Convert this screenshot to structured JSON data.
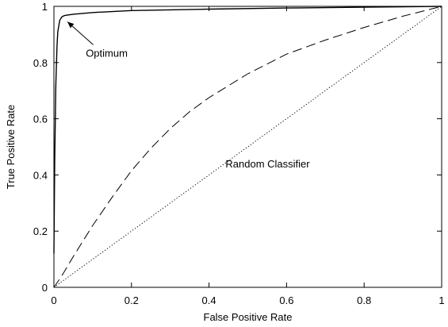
{
  "chart_data": {
    "type": "line",
    "title": "",
    "xlabel": "False Positive Rate",
    "ylabel": "True Positive Rate",
    "xlim": [
      0,
      1
    ],
    "ylim": [
      0,
      1
    ],
    "x_ticks": [
      0,
      0.2,
      0.4,
      0.6,
      0.8,
      1
    ],
    "y_ticks": [
      0,
      0.2,
      0.4,
      0.6,
      0.8,
      1
    ],
    "x_tick_labels": [
      "0",
      "0.2",
      "0.4",
      "0.6",
      "0.8",
      "1"
    ],
    "y_tick_labels": [
      "0",
      "0.2",
      "0.4",
      "0.6",
      "0.8",
      "1"
    ],
    "grid": false,
    "legend": "none",
    "series": [
      {
        "line_style": "solid",
        "x": [
          0,
          0.002,
          0.005,
          0.008,
          0.01,
          0.015,
          0.02,
          0.025,
          0.03,
          0.05,
          0.1,
          0.2,
          0.4,
          0.6,
          0.8,
          1.0
        ],
        "y": [
          0.12,
          0.45,
          0.72,
          0.86,
          0.91,
          0.95,
          0.962,
          0.966,
          0.968,
          0.972,
          0.978,
          0.985,
          0.99,
          0.994,
          0.997,
          1.0
        ]
      },
      {
        "line_style": "dashed",
        "x": [
          0,
          0.02,
          0.05,
          0.1,
          0.15,
          0.2,
          0.25,
          0.3,
          0.35,
          0.4,
          0.5,
          0.6,
          0.7,
          0.8,
          0.9,
          1.0
        ],
        "y": [
          0,
          0.04,
          0.11,
          0.22,
          0.32,
          0.415,
          0.495,
          0.565,
          0.625,
          0.675,
          0.76,
          0.83,
          0.88,
          0.925,
          0.965,
          1.0
        ]
      },
      {
        "line_style": "dotted",
        "x": [
          0,
          1
        ],
        "y": [
          0,
          1
        ]
      }
    ],
    "annotations": [
      {
        "text": "Optimum",
        "arrow": true,
        "x": 0.035,
        "y": 0.945,
        "text_x": 0.085,
        "text_y": 0.835
      },
      {
        "text": "Random Classifier",
        "arrow": false,
        "x": 0.5,
        "y": 0.44
      }
    ]
  }
}
